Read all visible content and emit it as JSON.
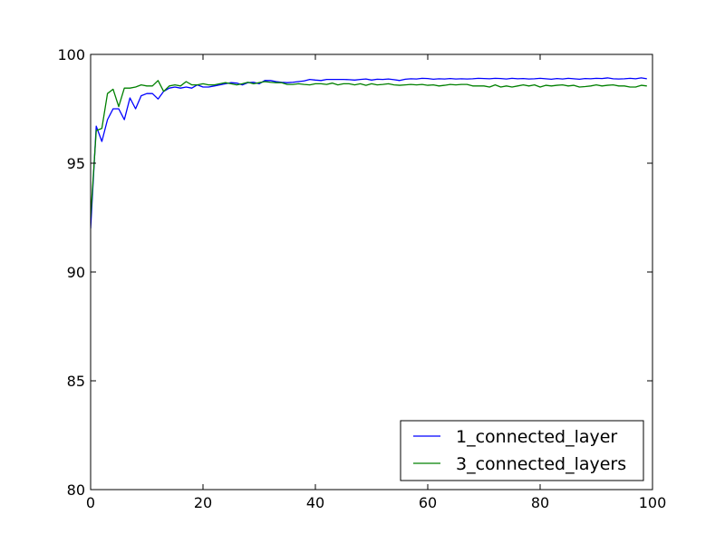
{
  "chart_data": {
    "type": "line",
    "title": "",
    "xlabel": "",
    "ylabel": "",
    "xlim": [
      0,
      100
    ],
    "ylim": [
      80,
      100
    ],
    "x_ticks": [
      0,
      20,
      40,
      60,
      80,
      100
    ],
    "y_ticks": [
      80,
      85,
      90,
      95,
      100
    ],
    "x_tick_labels": [
      "0",
      "20",
      "40",
      "60",
      "80",
      "100"
    ],
    "y_tick_labels": [
      "80",
      "85",
      "90",
      "95",
      "100"
    ],
    "grid": false,
    "legend_position": "lower-right",
    "series": [
      {
        "name": "1_connected_layer",
        "color": "#0000ff",
        "x": [
          0,
          1,
          2,
          3,
          4,
          5,
          6,
          7,
          8,
          9,
          10,
          11,
          12,
          13,
          14,
          15,
          16,
          17,
          18,
          19,
          20,
          21,
          22,
          23,
          24,
          25,
          26,
          27,
          28,
          29,
          30,
          31,
          32,
          33,
          34,
          35,
          36,
          37,
          38,
          39,
          40,
          41,
          42,
          43,
          44,
          45,
          46,
          47,
          48,
          49,
          50,
          51,
          52,
          53,
          54,
          55,
          56,
          57,
          58,
          59,
          60,
          61,
          62,
          63,
          64,
          65,
          66,
          67,
          68,
          69,
          70,
          71,
          72,
          73,
          74,
          75,
          76,
          77,
          78,
          79,
          80,
          81,
          82,
          83,
          84,
          85,
          86,
          87,
          88,
          89,
          90,
          91,
          92,
          93,
          94,
          95,
          96,
          97,
          98,
          99
        ],
        "values": [
          92.0,
          96.7,
          96.0,
          97.0,
          97.5,
          97.5,
          97.0,
          98.0,
          97.5,
          98.1,
          98.2,
          98.2,
          97.95,
          98.3,
          98.45,
          98.5,
          98.45,
          98.5,
          98.45,
          98.6,
          98.5,
          98.5,
          98.55,
          98.6,
          98.65,
          98.7,
          98.68,
          98.6,
          98.7,
          98.72,
          98.65,
          98.8,
          98.8,
          98.75,
          98.72,
          98.7,
          98.72,
          98.75,
          98.78,
          98.85,
          98.82,
          98.8,
          98.85,
          98.85,
          98.85,
          98.85,
          98.84,
          98.82,
          98.85,
          98.87,
          98.82,
          98.86,
          98.85,
          98.87,
          98.84,
          98.8,
          98.86,
          98.88,
          98.87,
          98.9,
          98.89,
          98.86,
          98.88,
          98.87,
          98.89,
          98.87,
          98.88,
          98.87,
          98.88,
          98.9,
          98.89,
          98.88,
          98.9,
          98.89,
          98.87,
          98.9,
          98.88,
          98.89,
          98.87,
          98.88,
          98.9,
          98.88,
          98.86,
          98.89,
          98.87,
          98.9,
          98.88,
          98.86,
          98.89,
          98.88,
          98.9,
          98.89,
          98.92,
          98.88,
          98.87,
          98.88,
          98.9,
          98.88,
          98.92,
          98.88
        ]
      },
      {
        "name": "3_connected_layers",
        "color": "#008000",
        "x": [
          0,
          1,
          2,
          3,
          4,
          5,
          6,
          7,
          8,
          9,
          10,
          11,
          12,
          13,
          14,
          15,
          16,
          17,
          18,
          19,
          20,
          21,
          22,
          23,
          24,
          25,
          26,
          27,
          28,
          29,
          30,
          31,
          32,
          33,
          34,
          35,
          36,
          37,
          38,
          39,
          40,
          41,
          42,
          43,
          44,
          45,
          46,
          47,
          48,
          49,
          50,
          51,
          52,
          53,
          54,
          55,
          56,
          57,
          58,
          59,
          60,
          61,
          62,
          63,
          64,
          65,
          66,
          67,
          68,
          69,
          70,
          71,
          72,
          73,
          74,
          75,
          76,
          77,
          78,
          79,
          80,
          81,
          82,
          83,
          84,
          85,
          86,
          87,
          88,
          89,
          90,
          91,
          92,
          93,
          94,
          95,
          96,
          97,
          98,
          99
        ],
        "values": [
          92.5,
          96.5,
          96.6,
          98.2,
          98.4,
          97.6,
          98.45,
          98.45,
          98.5,
          98.6,
          98.55,
          98.55,
          98.8,
          98.3,
          98.55,
          98.6,
          98.55,
          98.75,
          98.6,
          98.6,
          98.65,
          98.6,
          98.6,
          98.65,
          98.7,
          98.65,
          98.6,
          98.65,
          98.72,
          98.65,
          98.7,
          98.75,
          98.72,
          98.7,
          98.7,
          98.62,
          98.62,
          98.65,
          98.62,
          98.6,
          98.65,
          98.65,
          98.62,
          98.68,
          98.6,
          98.65,
          98.65,
          98.6,
          98.65,
          98.58,
          98.65,
          98.6,
          98.62,
          98.65,
          98.6,
          98.58,
          98.6,
          98.62,
          98.6,
          98.62,
          98.58,
          98.6,
          98.55,
          98.58,
          98.62,
          98.6,
          98.62,
          98.62,
          98.55,
          98.55,
          98.55,
          98.5,
          98.6,
          98.5,
          98.55,
          98.5,
          98.55,
          98.6,
          98.55,
          98.6,
          98.5,
          98.58,
          98.55,
          98.58,
          98.6,
          98.55,
          98.58,
          98.5,
          98.52,
          98.55,
          98.6,
          98.55,
          98.58,
          98.6,
          98.55,
          98.55,
          98.5,
          98.5,
          98.58,
          98.55
        ]
      }
    ]
  }
}
